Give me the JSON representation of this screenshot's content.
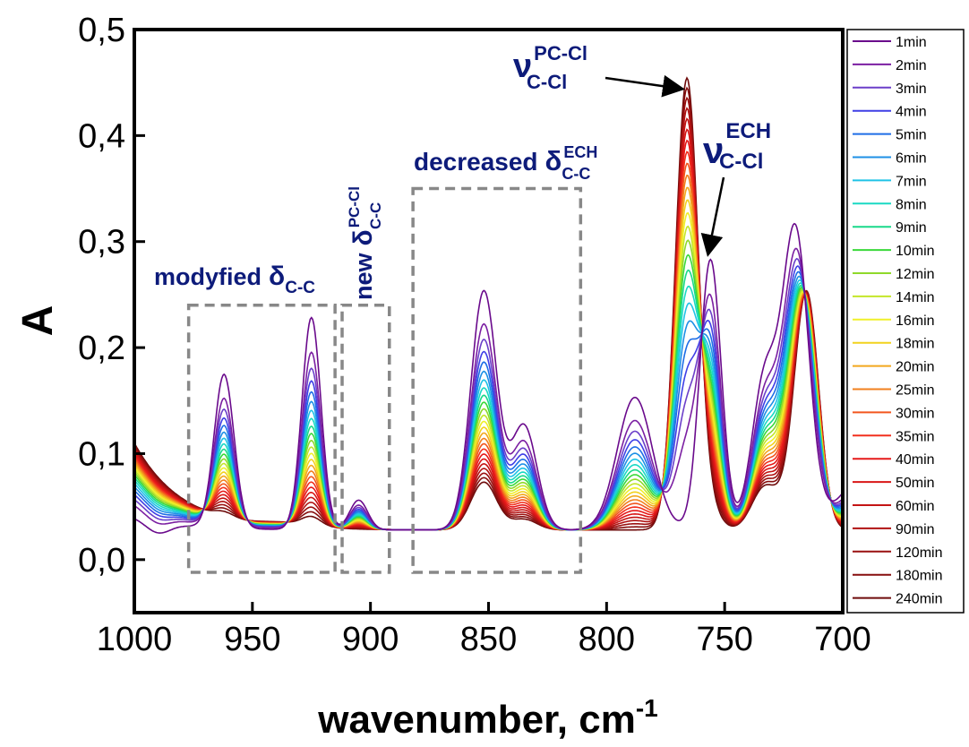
{
  "chart_data": {
    "type": "line",
    "xlabel": "wavenumber, cm",
    "xlabel_superscript": "-1",
    "ylabel": "A",
    "xlim": [
      1000,
      700
    ],
    "ylim": [
      -0.05,
      0.5
    ],
    "x_reversed": true,
    "x_ticks": [
      "1000",
      "950",
      "900",
      "850",
      "800",
      "750",
      "700"
    ],
    "y_ticks": [
      "0,0",
      "0,1",
      "0,2",
      "0,3",
      "0,4",
      "0,5"
    ],
    "legend_position": "right-outside",
    "grid": false,
    "annotations": {
      "modified": {
        "word": "modyfied",
        "symbol": "δ",
        "subscript": "C-C"
      },
      "new": {
        "word": "new",
        "symbol": "δ",
        "subscript": "C-C",
        "superscript": "PC-Cl"
      },
      "decreased": {
        "word": "decreased",
        "symbol": "δ",
        "subscript": "C-C",
        "superscript": "ECH"
      },
      "nu_pc": {
        "symbol": "ν",
        "subscript": "C-Cl",
        "superscript": "PC-Cl"
      },
      "nu_ech": {
        "symbol": "ν",
        "subscript": "C-Cl",
        "superscript": "ECH"
      }
    },
    "boxes": [
      {
        "x": [
          977,
          915
        ],
        "y": [
          -0.012,
          0.24
        ]
      },
      {
        "x": [
          912,
          892
        ],
        "y": [
          -0.012,
          0.24
        ]
      },
      {
        "x": [
          882,
          811
        ],
        "y": [
          -0.012,
          0.35
        ]
      }
    ],
    "bands": [
      {
        "center": 962,
        "width": 4.2,
        "first": 0.145,
        "last": 0.005
      },
      {
        "center": 925,
        "width": 4.0,
        "first": 0.2,
        "last": 0.008
      },
      {
        "center": 905,
        "width": 3.8,
        "first": 0.028,
        "last": 0.0
      },
      {
        "center": 852,
        "width": 5.5,
        "first": 0.225,
        "last": 0.045
      },
      {
        "center": 835,
        "width": 5.5,
        "first": 0.098,
        "last": 0.01
      },
      {
        "center": 788,
        "width": 7.5,
        "first": 0.125,
        "last": 0.0
      },
      {
        "center": 766,
        "width": 4.8,
        "first": 0.0,
        "last": 0.425
      },
      {
        "center": 756,
        "width": 4.5,
        "first": 0.255,
        "last": 0.015
      },
      {
        "center": 733,
        "width": 5.5,
        "first": 0.14,
        "last": 0.04
      },
      {
        "center": 720,
        "width": 5.5,
        "first": 0.275,
        "last": 0.03
      },
      {
        "center": 715,
        "width": 5.0,
        "first": 0.0,
        "last": 0.205
      }
    ],
    "series": [
      {
        "name": "1min",
        "color": "#6a0a8c"
      },
      {
        "name": "2min",
        "color": "#7b1fa2"
      },
      {
        "name": "3min",
        "color": "#6b3fc9"
      },
      {
        "name": "4min",
        "color": "#3f3fe6"
      },
      {
        "name": "5min",
        "color": "#1e6ee6"
      },
      {
        "name": "6min",
        "color": "#1e90e6"
      },
      {
        "name": "7min",
        "color": "#1fc3e6"
      },
      {
        "name": "8min",
        "color": "#19d9c4"
      },
      {
        "name": "9min",
        "color": "#19d98a"
      },
      {
        "name": "10min",
        "color": "#3ad93a"
      },
      {
        "name": "12min",
        "color": "#8fd92a"
      },
      {
        "name": "14min",
        "color": "#c4e62a"
      },
      {
        "name": "16min",
        "color": "#f0f02a"
      },
      {
        "name": "18min",
        "color": "#f2d21e"
      },
      {
        "name": "20min",
        "color": "#f2a81e"
      },
      {
        "name": "25min",
        "color": "#f2801e"
      },
      {
        "name": "30min",
        "color": "#f2561e"
      },
      {
        "name": "35min",
        "color": "#f2301e"
      },
      {
        "name": "40min",
        "color": "#e61a1a"
      },
      {
        "name": "50min",
        "color": "#d91616"
      },
      {
        "name": "60min",
        "color": "#c41414"
      },
      {
        "name": "90min",
        "color": "#b01212"
      },
      {
        "name": "120min",
        "color": "#9a1010"
      },
      {
        "name": "180min",
        "color": "#860e0e"
      },
      {
        "name": "240min",
        "color": "#6e0b0b"
      }
    ]
  }
}
